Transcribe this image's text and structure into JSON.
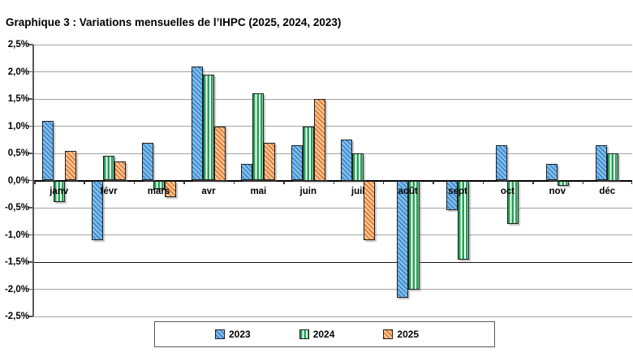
{
  "title": "Graphique 3 : Variations mensuelles de l’IHPC (2025, 2024, 2023)",
  "chart_data": {
    "type": "bar",
    "title": "Graphique 3 : Variations mensuelles de l’IHPC (2025, 2024, 2023)",
    "xlabel": "",
    "ylabel": "",
    "ylim": [
      -2.5,
      2.5
    ],
    "grid": true,
    "legend_position": "bottom",
    "dark_gridline": -1.5,
    "categories": [
      "janv",
      "févr",
      "mars",
      "avr",
      "mai",
      "juin",
      "juil",
      "août",
      "sept",
      "oct",
      "nov",
      "déc"
    ],
    "yticks": [
      {
        "v": 2.5,
        "label": "2,5%"
      },
      {
        "v": 2.0,
        "label": "2,0%"
      },
      {
        "v": 1.5,
        "label": "1,5%"
      },
      {
        "v": 1.0,
        "label": "1,0%"
      },
      {
        "v": 0.5,
        "label": "0,5%"
      },
      {
        "v": 0.0,
        "label": "0,0%"
      },
      {
        "v": -0.5,
        "label": "-0,5%"
      },
      {
        "v": -1.0,
        "label": "-1,0%"
      },
      {
        "v": -1.5,
        "label": "-1,5%"
      },
      {
        "v": -2.0,
        "label": "-2,0%"
      },
      {
        "v": -2.5,
        "label": "-2,5%"
      }
    ],
    "series": [
      {
        "name": "2023",
        "color": "#3e8fd2",
        "pattern": "diagonal-hatch",
        "values": [
          1.1,
          -1.1,
          0.7,
          2.1,
          0.3,
          0.65,
          0.75,
          -2.15,
          -0.55,
          0.65,
          0.3,
          0.65
        ]
      },
      {
        "name": "2024",
        "color": "#1fa352",
        "pattern": "vertical-stripes",
        "values": [
          -0.4,
          0.45,
          -0.15,
          1.95,
          1.6,
          1.0,
          0.5,
          -2.0,
          -1.45,
          -0.8,
          -0.1,
          0.5
        ]
      },
      {
        "name": "2025",
        "color": "#e87e2f",
        "pattern": "diagonal-hatch",
        "values": [
          0.55,
          0.35,
          -0.3,
          1.0,
          0.7,
          1.5,
          -1.1,
          null,
          null,
          null,
          null,
          null
        ]
      }
    ]
  }
}
